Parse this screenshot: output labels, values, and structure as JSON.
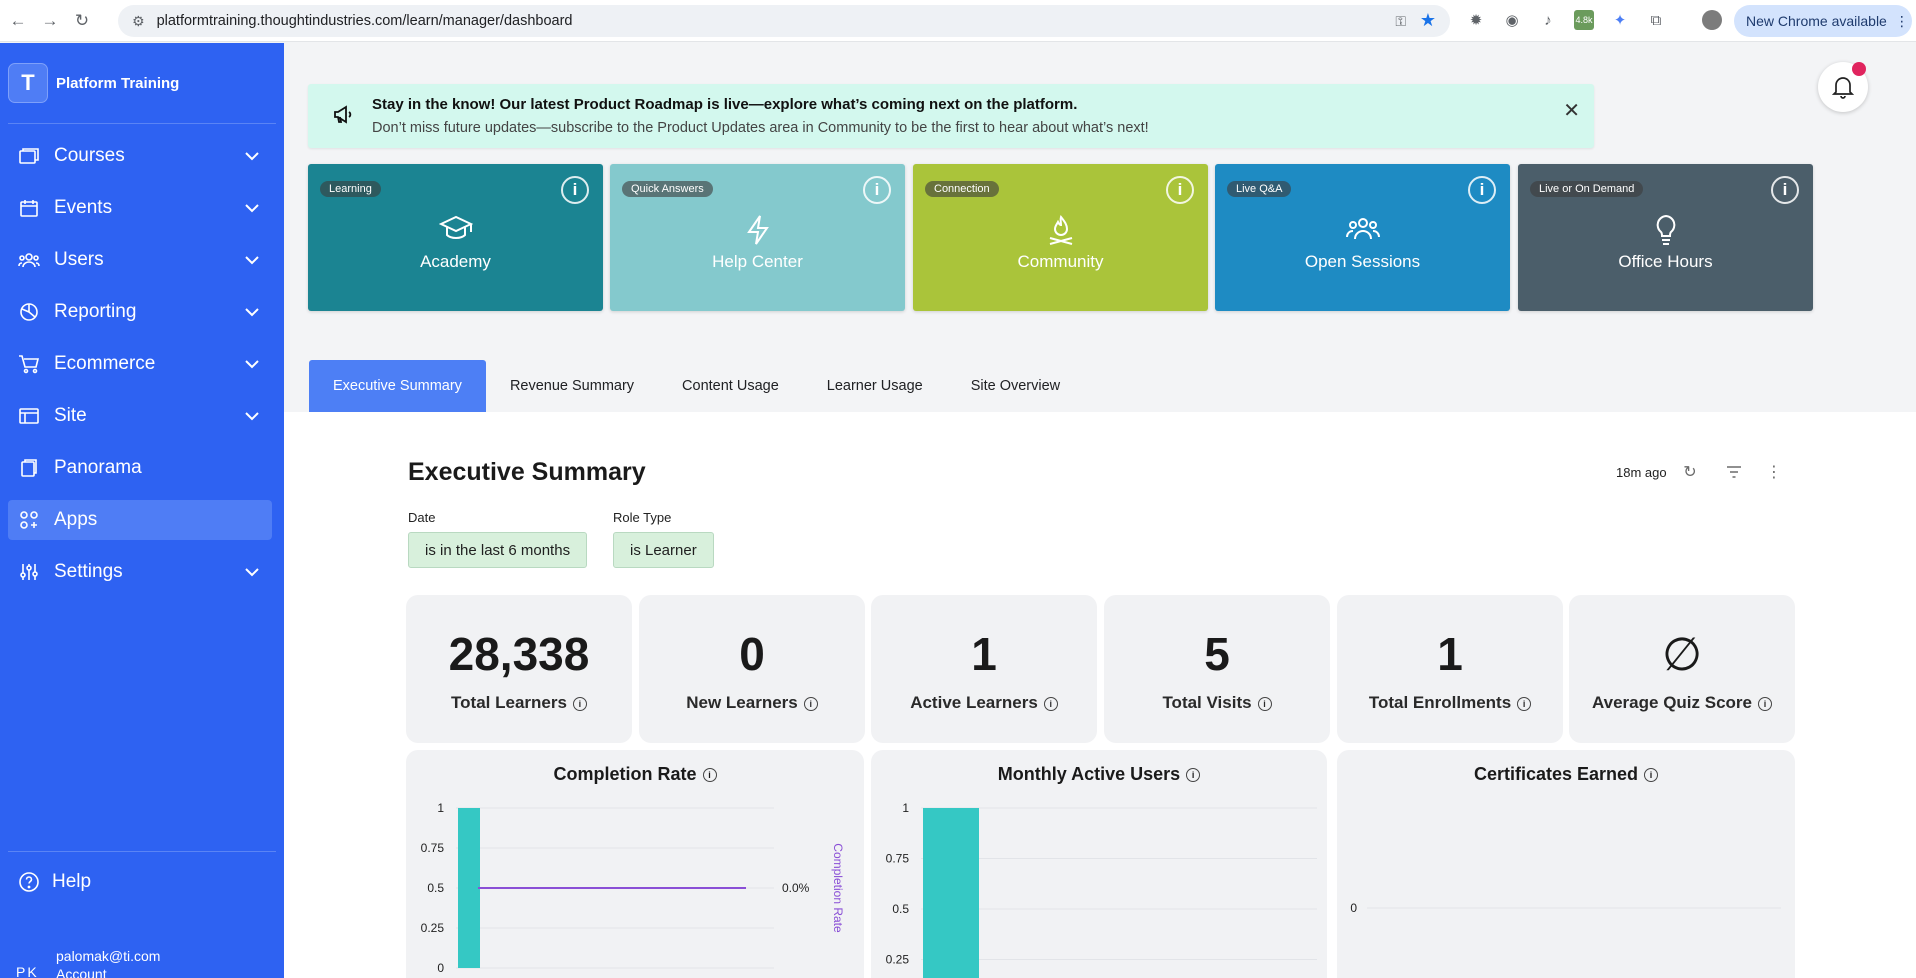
{
  "browser": {
    "url": "platformtraining.thoughtindustries.com/learn/manager/dashboard",
    "update_label": "New Chrome available",
    "ext_badge": "4.8k"
  },
  "sidebar": {
    "brand": "Platform Training",
    "items": [
      {
        "label": "Courses",
        "expandable": true
      },
      {
        "label": "Events",
        "expandable": true
      },
      {
        "label": "Users",
        "expandable": true
      },
      {
        "label": "Reporting",
        "expandable": true
      },
      {
        "label": "Ecommerce",
        "expandable": true
      },
      {
        "label": "Site",
        "expandable": true
      },
      {
        "label": "Panorama",
        "expandable": false
      },
      {
        "label": "Apps",
        "expandable": false,
        "active": true
      },
      {
        "label": "Settings",
        "expandable": true
      }
    ],
    "help": "Help",
    "account": {
      "initials": "PK",
      "email": "palomak@ti.com",
      "label": "Account"
    }
  },
  "banner": {
    "headline": "Stay in the know! Our latest Product Roadmap is live—explore what’s coming next on the platform.",
    "body": "Don’t miss future updates—subscribe to the Product Updates area in Community to be the first to hear about what’s next!"
  },
  "tiles": [
    {
      "tag": "Learning",
      "name": "Academy",
      "color": "#1b8492",
      "icon": "graduation-cap-icon"
    },
    {
      "tag": "Quick Answers",
      "name": "Help Center",
      "color": "#84c9cd",
      "icon": "lightning-icon"
    },
    {
      "tag": "Connection",
      "name": "Community",
      "color": "#aac43a",
      "icon": "campfire-icon"
    },
    {
      "tag": "Live Q&A",
      "name": "Open Sessions",
      "color": "#1e8bc3",
      "icon": "people-icon"
    },
    {
      "tag": "Live or On Demand",
      "name": "Office Hours",
      "color": "#4b5e6a",
      "icon": "lightbulb-icon"
    }
  ],
  "tabs": [
    "Executive Summary",
    "Revenue Summary",
    "Content Usage",
    "Learner Usage",
    "Site Overview"
  ],
  "dashboard": {
    "title": "Executive Summary",
    "updated": "18m ago",
    "filters": [
      {
        "label": "Date",
        "value": "is in the last 6 months"
      },
      {
        "label": "Role Type",
        "value": "is Learner"
      }
    ],
    "kpis": [
      {
        "value": "28,338",
        "label": "Total Learners"
      },
      {
        "value": "0",
        "label": "New Learners"
      },
      {
        "value": "1",
        "label": "Active Learners"
      },
      {
        "value": "5",
        "label": "Total Visits"
      },
      {
        "value": "1",
        "label": "Total Enrollments"
      },
      {
        "value": "∅",
        "label": "Average Quiz Score"
      }
    ],
    "cards": [
      "Completion Rate",
      "Monthly Active Users",
      "Certificates Earned"
    ]
  },
  "chart_data": [
    {
      "type": "bar",
      "title": "Completion Rate",
      "y_ticks": [
        "0",
        "0.25",
        "0.5",
        "0.75",
        "1"
      ],
      "ylim": [
        0,
        1
      ],
      "bar_values": [
        1
      ],
      "line_series": {
        "name": "Completion Rate",
        "value": 0.5
      },
      "right_axis_label": "Completion Rate",
      "right_tick": "0.0%",
      "bar_color": "#35c8c4",
      "line_color": "#8a4fd6"
    },
    {
      "type": "bar",
      "title": "Monthly Active Users",
      "y_ticks": [
        "0.25",
        "0.5",
        "0.75",
        "1"
      ],
      "ylim": [
        0,
        1
      ],
      "bar_values": [
        1
      ],
      "bar_color": "#35c8c4"
    },
    {
      "type": "bar",
      "title": "Certificates Earned",
      "y_ticks": [
        "0"
      ],
      "bar_values": []
    }
  ]
}
